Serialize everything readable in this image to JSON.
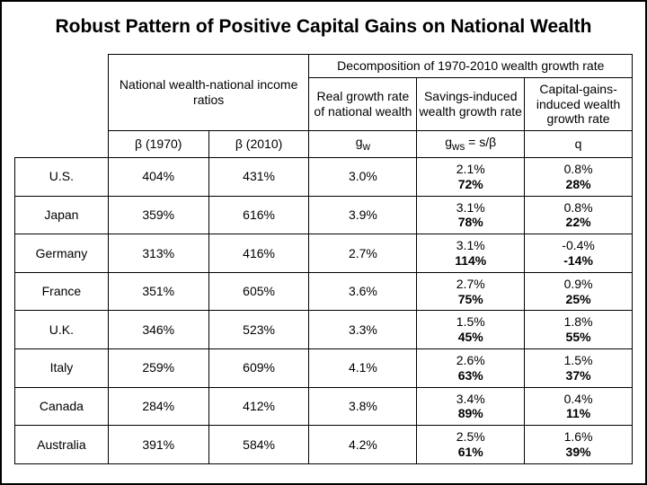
{
  "title": "Robust Pattern of Positive Capital Gains on National Wealth",
  "headers": {
    "groupA": "National wealth-national income ratios",
    "groupB": "Decomposition of 1970-2010 wealth growth rate",
    "beta1970": "β (1970)",
    "beta2010": "β (2010)",
    "real": "Real growth rate of national wealth",
    "savings": "Savings-induced wealth growth rate",
    "capital": "Capital-gains-induced wealth growth rate",
    "gw": "gw",
    "gws_expr": "gws = s/β",
    "gws": "gws",
    "q": "q"
  },
  "rows": [
    {
      "country": "U.S.",
      "b70": "404%",
      "b10": "431%",
      "gw": "3.0%",
      "s1": "2.1%",
      "s2": "72%",
      "c1": "0.8%",
      "c2": "28%"
    },
    {
      "country": "Japan",
      "b70": "359%",
      "b10": "616%",
      "gw": "3.9%",
      "s1": "3.1%",
      "s2": "78%",
      "c1": "0.8%",
      "c2": "22%"
    },
    {
      "country": "Germany",
      "b70": "313%",
      "b10": "416%",
      "gw": "2.7%",
      "s1": "3.1%",
      "s2": "114%",
      "c1": "-0.4%",
      "c2": "-14%"
    },
    {
      "country": "France",
      "b70": "351%",
      "b10": "605%",
      "gw": "3.6%",
      "s1": "2.7%",
      "s2": "75%",
      "c1": "0.9%",
      "c2": "25%"
    },
    {
      "country": "U.K.",
      "b70": "346%",
      "b10": "523%",
      "gw": "3.3%",
      "s1": "1.5%",
      "s2": "45%",
      "c1": "1.8%",
      "c2": "55%"
    },
    {
      "country": "Italy",
      "b70": "259%",
      "b10": "609%",
      "gw": "4.1%",
      "s1": "2.6%",
      "s2": "63%",
      "c1": "1.5%",
      "c2": "37%"
    },
    {
      "country": "Canada",
      "b70": "284%",
      "b10": "412%",
      "gw": "3.8%",
      "s1": "3.4%",
      "s2": "89%",
      "c1": "0.4%",
      "c2": "11%"
    },
    {
      "country": "Australia",
      "b70": "391%",
      "b10": "584%",
      "gw": "4.2%",
      "s1": "2.5%",
      "s2": "61%",
      "c1": "1.6%",
      "c2": "39%"
    }
  ]
}
